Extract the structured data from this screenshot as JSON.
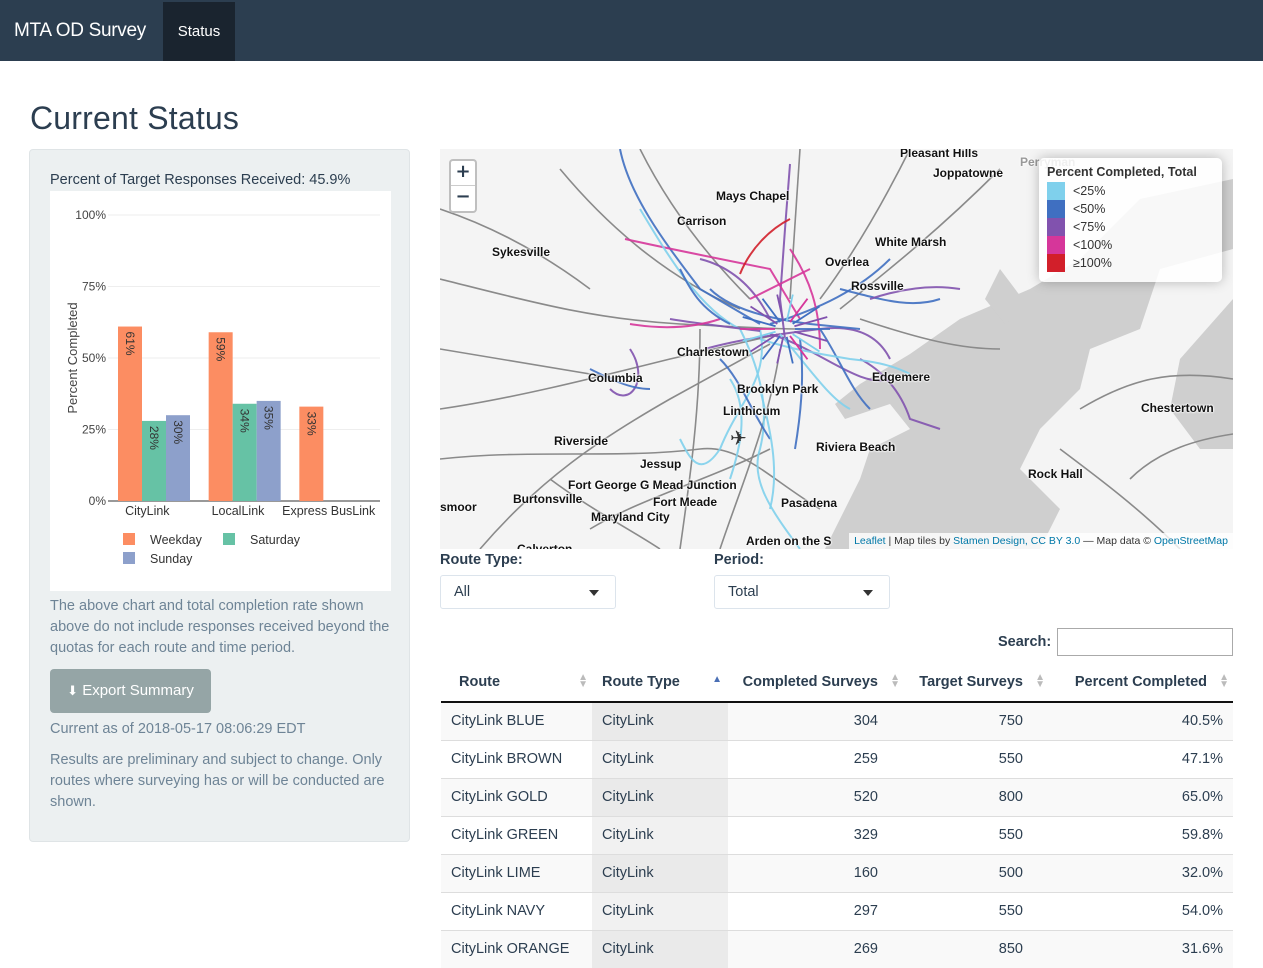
{
  "navbar": {
    "brand": "MTA OD Survey",
    "tab_status": "Status"
  },
  "page_title": "Current Status",
  "sidebar": {
    "percent_text": "Percent of Target Responses Received: 45.9%",
    "note1": "The above chart and total completion rate shown above do not include responses received beyond the quotas for each route and time period.",
    "export_label": "Export Summary",
    "current_as_of": "Current as of 2018-05-17 08:06:29 EDT",
    "note2": "Results are preliminary and subject to change. Only routes where surveying has or will be conducted are shown."
  },
  "chart_data": {
    "type": "bar",
    "title": "",
    "xlabel": "",
    "ylabel": "Percent Completed",
    "ylim": [
      0,
      100
    ],
    "y_ticks": [
      "0%",
      "25%",
      "50%",
      "75%",
      "100%"
    ],
    "categories": [
      "CityLink",
      "LocalLink",
      "Express BusLink"
    ],
    "series": [
      {
        "name": "Weekday",
        "color": "#fc8d62",
        "values": [
          61,
          59,
          33
        ],
        "labels": [
          "61%",
          "59%",
          "33%"
        ]
      },
      {
        "name": "Saturday",
        "color": "#66c2a5",
        "values": [
          28,
          34,
          null
        ],
        "labels": [
          "28%",
          "34%",
          ""
        ]
      },
      {
        "name": "Sunday",
        "color": "#8da0cb",
        "values": [
          30,
          35,
          null
        ],
        "labels": [
          "30%",
          "35%",
          ""
        ]
      }
    ],
    "legend_position": "bottom",
    "grid": true
  },
  "map": {
    "zoom_in": "+",
    "zoom_out": "−",
    "legend_title": "Percent Completed, Total",
    "legend": [
      {
        "label": "<25%",
        "color": "#7fd0ec"
      },
      {
        "label": "<50%",
        "color": "#3f6fc1"
      },
      {
        "label": "<75%",
        "color": "#8152ae"
      },
      {
        "label": "<100%",
        "color": "#d6369a"
      },
      {
        "label": "≥100%",
        "color": "#d21f2a"
      }
    ],
    "places": [
      "Pleasant Hills",
      "Joppatowne",
      "Perryman",
      "Mays Chapel",
      "Carrison",
      "Sykesville",
      "White Marsh",
      "Overlea",
      "Rossville",
      "Charlestown",
      "Columbia",
      "Edgemere",
      "Brooklyn Park",
      "Linthicum",
      "Chestertown",
      "Riverside",
      "Riviera Beach",
      "Jessup",
      "Rock Hall",
      "Fort George G Mead Junction",
      "Burtonsville",
      "Fort Meade",
      "Pasadena",
      "smoor",
      "Maryland City",
      "Calverton",
      "Arden on the S"
    ],
    "attribution": {
      "leaflet": "Leaflet",
      "sep1": " | Map tiles by ",
      "stamen": "Stamen Design, CC BY 3.0",
      "sep2": " — Map data © ",
      "osm": "OpenStreetMap"
    }
  },
  "filters": {
    "route_type_label": "Route Type:",
    "route_type_value": "All",
    "period_label": "Period:",
    "period_value": "Total"
  },
  "table": {
    "search_label": "Search:",
    "headers": [
      "Route",
      "Route Type",
      "Completed Surveys",
      "Target Surveys",
      "Percent Completed"
    ],
    "rows": [
      [
        "CityLink BLUE",
        "CityLink",
        "304",
        "750",
        "40.5%"
      ],
      [
        "CityLink BROWN",
        "CityLink",
        "259",
        "550",
        "47.1%"
      ],
      [
        "CityLink GOLD",
        "CityLink",
        "520",
        "800",
        "65.0%"
      ],
      [
        "CityLink GREEN",
        "CityLink",
        "329",
        "550",
        "59.8%"
      ],
      [
        "CityLink LIME",
        "CityLink",
        "160",
        "500",
        "32.0%"
      ],
      [
        "CityLink NAVY",
        "CityLink",
        "297",
        "550",
        "54.0%"
      ],
      [
        "CityLink ORANGE",
        "CityLink",
        "269",
        "850",
        "31.6%"
      ]
    ]
  }
}
